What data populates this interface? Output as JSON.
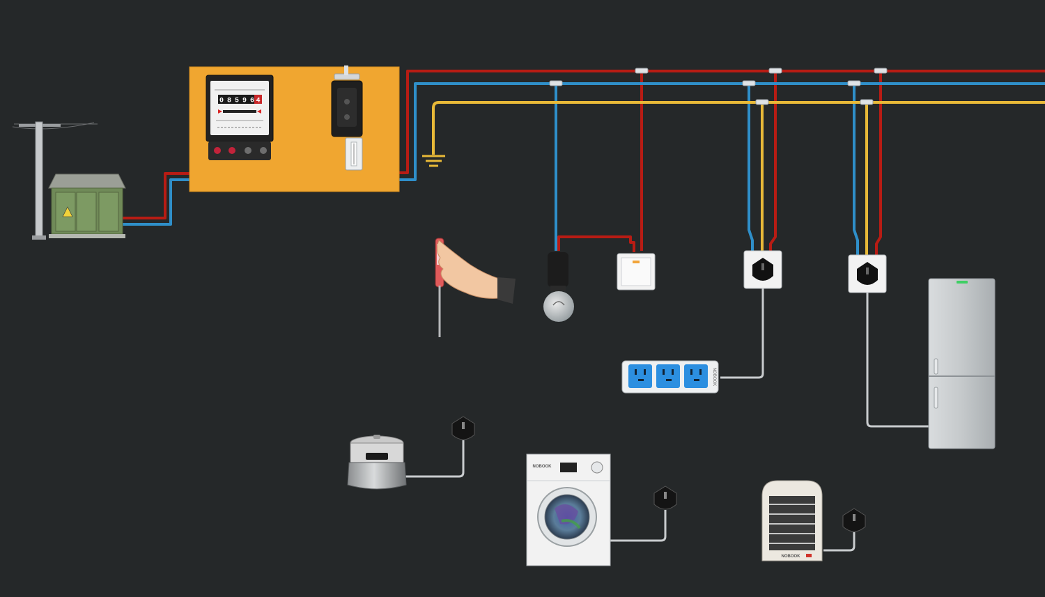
{
  "meter": {
    "reading_digits": [
      "0",
      "8",
      "5",
      "9",
      "6"
    ],
    "reading_last_digit": "4"
  },
  "appliances": {
    "power_strip_brand": "NOBOOK",
    "washer_brand": "NOBOOK",
    "heater_brand": "NOBOOK"
  },
  "colors": {
    "background": "#252829",
    "live_wire": "#b81c14",
    "neutral_wire": "#2f8fc9",
    "ground_wire": "#e8b938",
    "appliance_cord": "#c9ccce",
    "mounting_board": "#f0a630"
  },
  "icons": [
    "utility-pole-icon",
    "transformer-box-icon",
    "electric-meter-icon",
    "knife-switch-icon",
    "fuse-icon",
    "ground-symbol-icon",
    "test-pencil-icon",
    "hand-icon",
    "light-bulb-icon",
    "wall-switch-icon",
    "wall-socket-icon",
    "power-strip-icon",
    "refrigerator-icon",
    "rice-cooker-icon",
    "washing-machine-icon",
    "space-heater-icon",
    "plug-icon"
  ]
}
